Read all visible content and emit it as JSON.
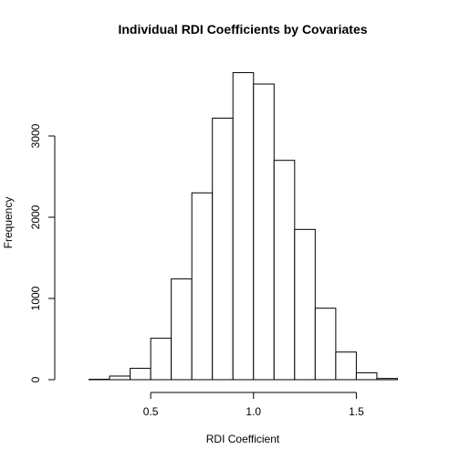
{
  "chart_data": {
    "type": "bar",
    "title": "Individual RDI Coefficients by Covariates",
    "xlabel": "RDI Coefficient",
    "ylabel": "Frequency",
    "bin_width": 0.1,
    "bins": [
      {
        "start": 0.2,
        "end": 0.3,
        "count": 5
      },
      {
        "start": 0.3,
        "end": 0.4,
        "count": 45
      },
      {
        "start": 0.4,
        "end": 0.5,
        "count": 140
      },
      {
        "start": 0.5,
        "end": 0.6,
        "count": 510
      },
      {
        "start": 0.6,
        "end": 0.7,
        "count": 1240
      },
      {
        "start": 0.7,
        "end": 0.8,
        "count": 2300
      },
      {
        "start": 0.8,
        "end": 0.9,
        "count": 3220
      },
      {
        "start": 0.9,
        "end": 1.0,
        "count": 3780
      },
      {
        "start": 1.0,
        "end": 1.1,
        "count": 3640
      },
      {
        "start": 1.1,
        "end": 1.2,
        "count": 2700
      },
      {
        "start": 1.2,
        "end": 1.3,
        "count": 1850
      },
      {
        "start": 1.3,
        "end": 1.4,
        "count": 880
      },
      {
        "start": 1.4,
        "end": 1.5,
        "count": 340
      },
      {
        "start": 1.5,
        "end": 1.6,
        "count": 85
      },
      {
        "start": 1.6,
        "end": 1.7,
        "count": 15
      }
    ],
    "xlim": [
      0.1,
      1.8
    ],
    "ylim": [
      0,
      4000
    ],
    "x_ticks": [
      {
        "value": 0.5,
        "label": "0.5"
      },
      {
        "value": 1.0,
        "label": "1.0"
      },
      {
        "value": 1.5,
        "label": "1.5"
      }
    ],
    "y_ticks": [
      {
        "value": 0,
        "label": "0"
      },
      {
        "value": 1000,
        "label": "1000"
      },
      {
        "value": 2000,
        "label": "2000"
      },
      {
        "value": 3000,
        "label": "3000"
      }
    ],
    "grid": false,
    "bar_fill": "#ffffff",
    "bar_stroke": "#000000"
  }
}
